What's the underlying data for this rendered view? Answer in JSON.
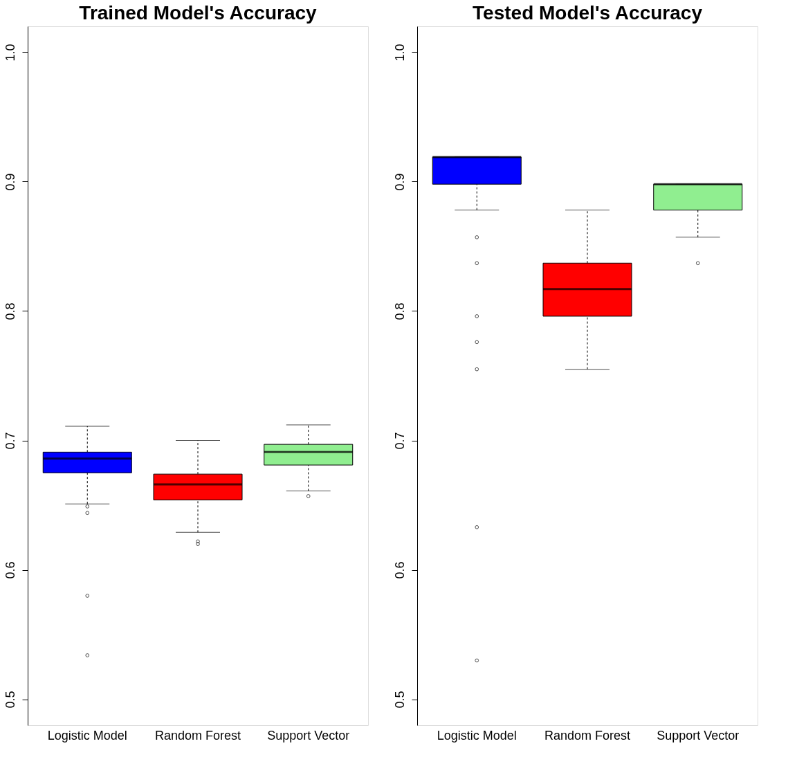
{
  "chart_data": [
    {
      "type": "box",
      "title": "Trained Model's Accuracy",
      "categories": [
        "Logistic Model",
        "Random Forest",
        "Support Vector"
      ],
      "colors": [
        "#0000ff",
        "#ff0000",
        "#90ee90"
      ],
      "boxes": [
        {
          "low": 0.651,
          "q1": 0.675,
          "median": 0.686,
          "q3": 0.691,
          "high": 0.711,
          "outliers": [
            0.649,
            0.644,
            0.58,
            0.534
          ]
        },
        {
          "low": 0.629,
          "q1": 0.654,
          "median": 0.666,
          "q3": 0.674,
          "high": 0.7,
          "outliers": [
            0.622,
            0.62
          ]
        },
        {
          "low": 0.661,
          "q1": 0.681,
          "median": 0.691,
          "q3": 0.697,
          "high": 0.712,
          "outliers": [
            0.657
          ]
        }
      ],
      "ylim": [
        0.48,
        1.02
      ],
      "yticks": [
        0.5,
        0.6,
        0.7,
        0.8,
        0.9,
        {
          "value": 1.0,
          "label": "1.0"
        }
      ],
      "grid": false
    },
    {
      "type": "box",
      "title": "Tested Model's Accuracy",
      "categories": [
        "Logistic Model",
        "Random Forest",
        "Support Vector"
      ],
      "colors": [
        "#0000ff",
        "#ff0000",
        "#90ee90"
      ],
      "boxes": [
        {
          "low": 0.878,
          "q1": 0.898,
          "median": 0.919,
          "q3": 0.919,
          "high": 0.919,
          "outliers": [
            0.857,
            0.837,
            0.796,
            0.776,
            0.755,
            0.633,
            0.53
          ]
        },
        {
          "low": 0.755,
          "q1": 0.796,
          "median": 0.817,
          "q3": 0.837,
          "high": 0.878
        },
        {
          "low": 0.857,
          "q1": 0.878,
          "median": 0.898,
          "q3": 0.898,
          "high": 0.898,
          "outliers": [
            0.837
          ]
        }
      ],
      "ylim": [
        0.48,
        1.02
      ],
      "yticks": [
        0.5,
        0.6,
        0.7,
        0.8,
        0.9,
        {
          "value": 1.0,
          "label": "1.0"
        }
      ],
      "grid": false
    }
  ]
}
